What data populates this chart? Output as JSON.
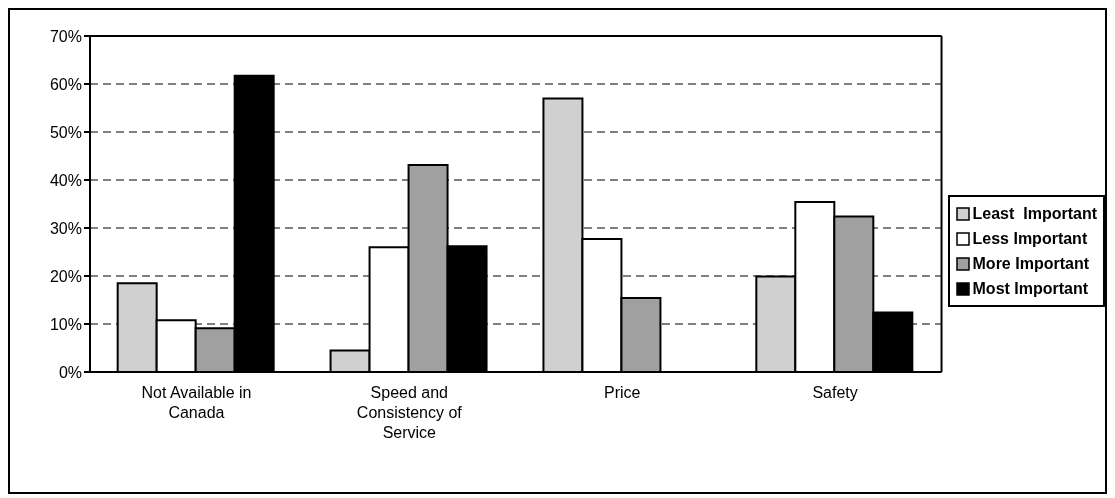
{
  "chart_data": {
    "type": "bar",
    "categories": [
      "Not Available in Canada",
      "Speed and Consistency of Service",
      "Price",
      "Safety"
    ],
    "series": [
      {
        "name": "Least  Important",
        "color": "#d0d0d0",
        "values": [
          18.5,
          4.5,
          57.0,
          19.9
        ]
      },
      {
        "name": "Less Important",
        "color": "#ffffff",
        "values": [
          10.8,
          26.0,
          27.7,
          35.4
        ]
      },
      {
        "name": "More Important",
        "color": "#a0a0a0",
        "values": [
          9.1,
          43.1,
          15.4,
          32.4
        ]
      },
      {
        "name": "Most Important",
        "color": "#000000",
        "values": [
          61.7,
          26.2,
          null,
          12.4
        ]
      }
    ],
    "ylim": [
      0,
      70
    ],
    "yticks": [
      {
        "value": 0,
        "label": "0%"
      },
      {
        "value": 10,
        "label": "10%"
      },
      {
        "value": 20,
        "label": "20%"
      },
      {
        "value": 30,
        "label": "30%"
      },
      {
        "value": 40,
        "label": "40%"
      },
      {
        "value": 50,
        "label": "50%"
      },
      {
        "value": 60,
        "label": "60%"
      },
      {
        "value": 70,
        "label": "70%"
      }
    ],
    "grid": "y",
    "legend": "right"
  }
}
